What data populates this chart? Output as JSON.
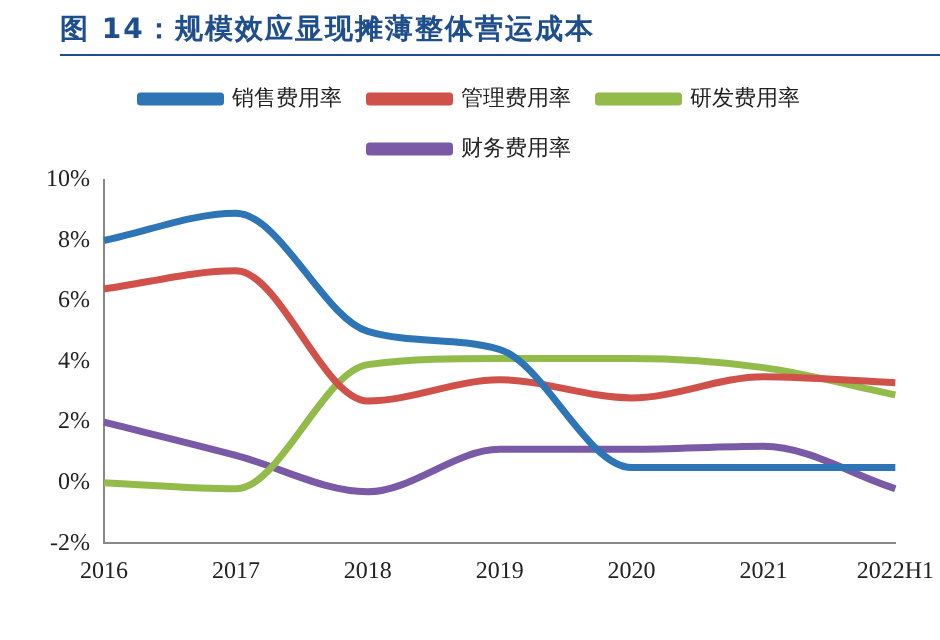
{
  "chart_data": {
    "type": "line",
    "title": "图 14：规模效应显现摊薄整体营运成本",
    "categories": [
      "2016",
      "2017",
      "2018",
      "2019",
      "2020",
      "2021",
      "2022H1"
    ],
    "series": [
      {
        "name": "销售费用率",
        "color": "#2e75b6",
        "values": [
          8.0,
          8.9,
          5.0,
          4.4,
          0.5,
          0.5,
          0.5
        ]
      },
      {
        "name": "管理费用率",
        "color": "#d0504a",
        "values": [
          6.4,
          7.0,
          2.7,
          3.4,
          2.8,
          3.5,
          3.3
        ]
      },
      {
        "name": "研发费用率",
        "color": "#92bb4a",
        "values": [
          0.0,
          -0.2,
          3.9,
          4.1,
          4.1,
          3.8,
          2.9
        ]
      },
      {
        "name": "财务费用率",
        "color": "#7a5aa6",
        "values": [
          2.0,
          0.9,
          -0.3,
          1.1,
          1.1,
          1.2,
          -0.2
        ]
      }
    ],
    "ylim": [
      -2,
      10
    ],
    "yticks": [
      {
        "value": -2,
        "label": "-2%"
      },
      {
        "value": 0,
        "label": "0%"
      },
      {
        "value": 2,
        "label": "2%"
      },
      {
        "value": 4,
        "label": "4%"
      },
      {
        "value": 6,
        "label": "6%"
      },
      {
        "value": 8,
        "label": "8%"
      },
      {
        "value": 10,
        "label": "10%"
      }
    ],
    "grid": false,
    "legend": "top",
    "marker": "none",
    "line_style": "solid"
  }
}
